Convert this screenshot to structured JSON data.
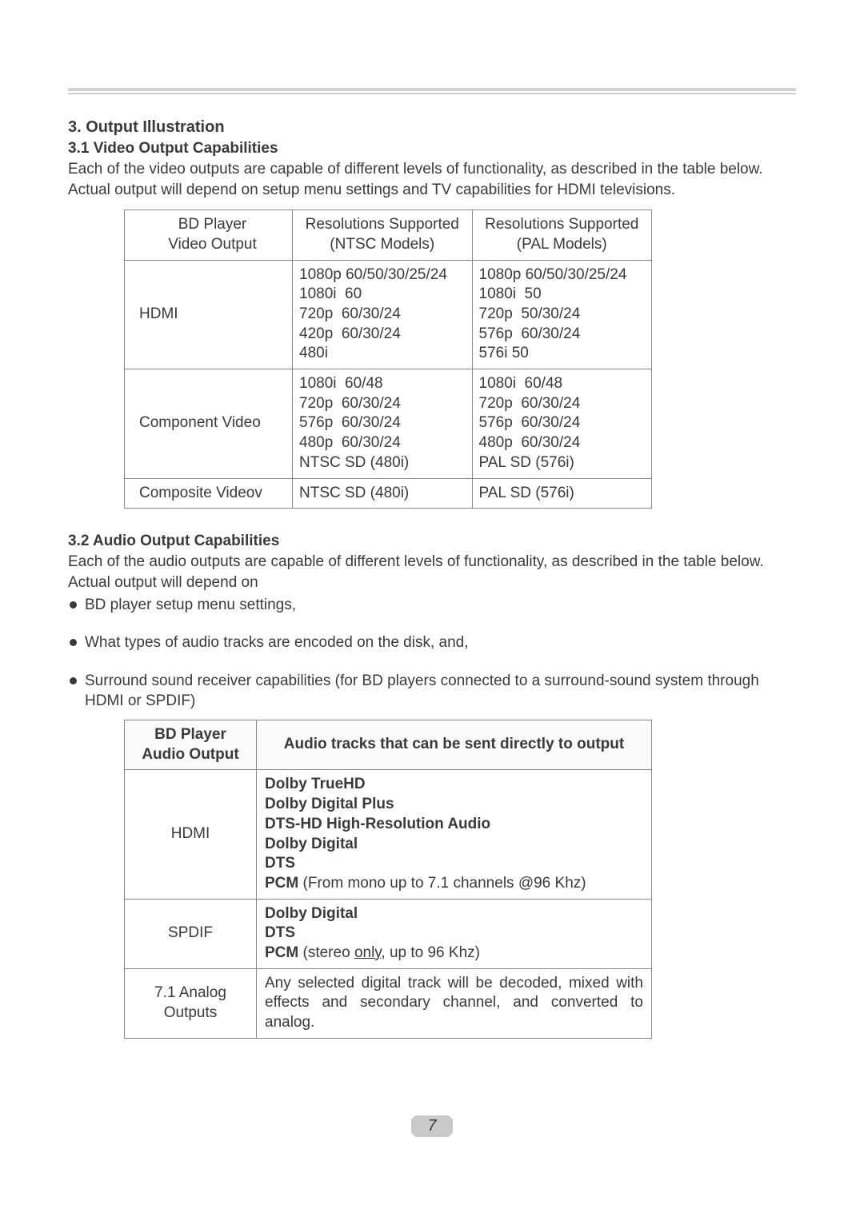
{
  "section": {
    "heading": "3. Output Illustration",
    "video": {
      "heading": "3.1  Video Output Capabilities",
      "intro": "Each of the video outputs are capable of different levels of functionality, as described in the table below. Actual output will depend on setup menu settings and TV capabilities for HDMI televisions.",
      "table": {
        "headers": [
          "BD Player\nVideo Output",
          "Resolutions Supported\n(NTSC Models)",
          "Resolutions Supported\n(PAL Models)"
        ],
        "rows": [
          [
            "HDMI",
            "1080p 60/50/30/25/24\n1080i  60\n720p  60/30/24\n420p  60/30/24\n480i",
            "1080p 60/50/30/25/24\n1080i  50\n720p  50/30/24\n576p  60/30/24\n576i 50"
          ],
          [
            "Component Video",
            "1080i  60/48\n720p  60/30/24\n576p  60/30/24\n480p  60/30/24\nNTSC SD (480i)",
            "1080i  60/48\n720p  60/30/24\n576p  60/30/24\n480p  60/30/24\nPAL SD (576i)"
          ],
          [
            "Composite Videov",
            "NTSC SD (480i)",
            "PAL SD (576i)"
          ]
        ]
      }
    },
    "audio": {
      "heading": "3.2   Audio Output Capabilities",
      "intro": "Each of the audio outputs are capable of different levels of functionality, as described in the table below. Actual output will depend on",
      "bullets": [
        "BD player setup menu settings,",
        "What types of audio tracks are encoded on the disk, and,",
        "Surround sound receiver capabilities (for BD players connected to a surround-sound system through HDMI or SPDIF)"
      ],
      "table": {
        "headers": [
          "BD Player\nAudio Output",
          "Audio tracks that can be sent directly to output"
        ],
        "rows": [
          {
            "out": "HDMI",
            "lines": [
              {
                "b": "Dolby TrueHD"
              },
              {
                "b": "Dolby Digital Plus"
              },
              {
                "b": "DTS-HD High-Resolution Audio"
              },
              {
                "b": "Dolby Digital"
              },
              {
                "b": "DTS"
              },
              {
                "b": "PCM",
                "rest": " (From mono up to 7.1 channels @96 Khz)"
              }
            ]
          },
          {
            "out": "SPDIF",
            "lines": [
              {
                "b": "Dolby Digital"
              },
              {
                "b": "DTS"
              },
              {
                "b": "PCM",
                "rest_pre": " (stereo ",
                "u": "only",
                "rest_post": ", up to 96 Khz)"
              }
            ]
          },
          {
            "out": "7.1 Analog\nOutputs",
            "justify": true,
            "plain": "Any selected digital track will be decoded, mixed with effects and secondary channel, and converted to analog."
          }
        ]
      }
    }
  },
  "page_number": "7"
}
